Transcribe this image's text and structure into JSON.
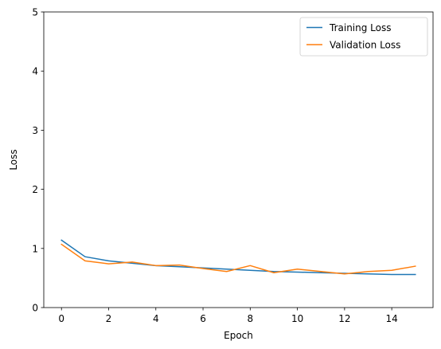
{
  "chart_data": {
    "type": "line",
    "title": "",
    "xlabel": "Epoch",
    "ylabel": "Loss",
    "xlim": [
      -0.75,
      15.75
    ],
    "ylim": [
      0,
      5
    ],
    "x_ticks": [
      0,
      2,
      4,
      6,
      8,
      10,
      12,
      14
    ],
    "y_ticks": [
      0,
      1,
      2,
      3,
      4,
      5
    ],
    "grid": false,
    "legend_position": "upper-right",
    "x": [
      0,
      1,
      2,
      3,
      4,
      5,
      6,
      7,
      8,
      9,
      10,
      11,
      12,
      13,
      14,
      15
    ],
    "series": [
      {
        "name": "Training Loss",
        "color": "#1f77b4",
        "values": [
          1.14,
          0.86,
          0.79,
          0.75,
          0.71,
          0.69,
          0.67,
          0.65,
          0.63,
          0.61,
          0.6,
          0.59,
          0.58,
          0.57,
          0.56,
          0.56
        ]
      },
      {
        "name": "Validation Loss",
        "color": "#ff7f0e",
        "values": [
          1.07,
          0.79,
          0.74,
          0.77,
          0.71,
          0.72,
          0.66,
          0.61,
          0.71,
          0.59,
          0.65,
          0.61,
          0.57,
          0.61,
          0.63,
          0.7
        ]
      }
    ]
  }
}
